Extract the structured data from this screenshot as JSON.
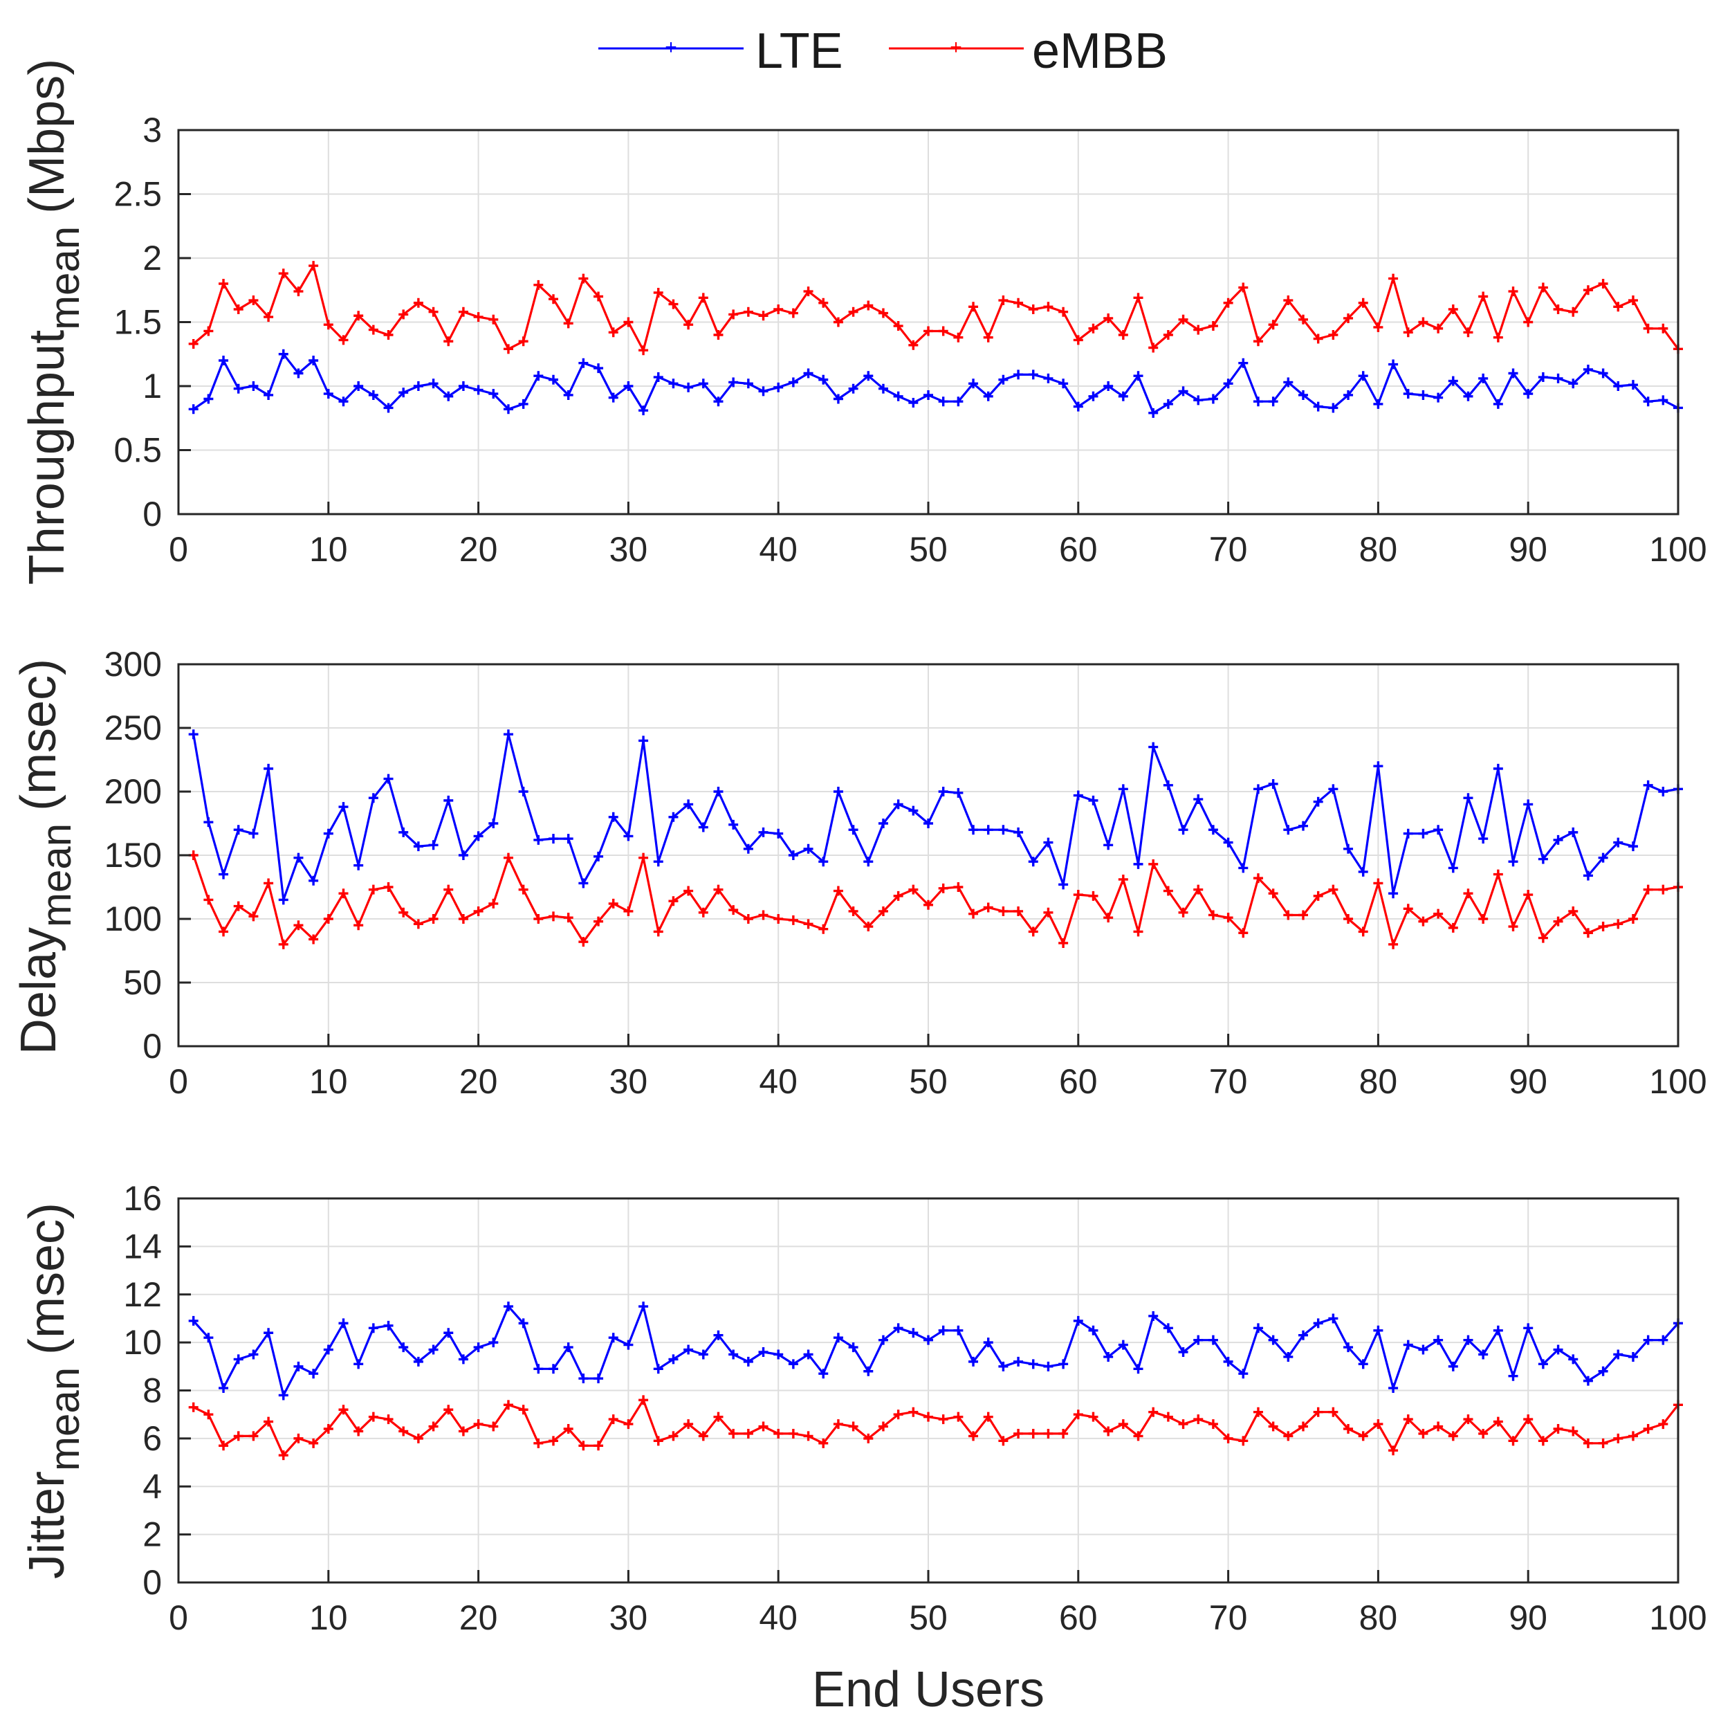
{
  "figure": {
    "legend": [
      {
        "name": "LTE",
        "color": "#0000ff"
      },
      {
        "name": "eMBB",
        "color": "#ff0000"
      }
    ],
    "shared_xlabel": "End Users"
  },
  "chart_data": [
    {
      "type": "line",
      "title": "",
      "xlabel": "",
      "ylabel": {
        "base": "Throughput",
        "sub": "mean",
        "unit": "(Mbps)"
      },
      "xlim": [
        0,
        100
      ],
      "ylim": [
        0,
        3
      ],
      "xticks": [
        0,
        10,
        20,
        30,
        40,
        50,
        60,
        70,
        80,
        90,
        100
      ],
      "xtick_labels": [
        "0",
        "10",
        "20",
        "30",
        "40",
        "50",
        "60",
        "70",
        "80",
        "90",
        "100"
      ],
      "yticks": [
        0,
        0.5,
        1,
        1.5,
        2,
        2.5,
        3
      ],
      "ytick_labels": [
        "0",
        "0.5",
        "1",
        "1.5",
        "2",
        "2.5",
        "3"
      ],
      "grid": true,
      "series": [
        {
          "name": "LTE",
          "color": "#0000ff",
          "values": [
            0.82,
            0.9,
            1.2,
            0.98,
            1.0,
            0.93,
            1.25,
            1.1,
            1.2,
            0.94,
            0.88,
            1.0,
            0.93,
            0.83,
            0.95,
            1.0,
            1.02,
            0.92,
            1.0,
            0.97,
            0.94,
            0.82,
            0.86,
            1.08,
            1.05,
            0.93,
            1.18,
            1.14,
            0.91,
            1.0,
            0.81,
            1.07,
            1.02,
            0.99,
            1.02,
            0.88,
            1.03,
            1.02,
            0.96,
            0.99,
            1.03,
            1.1,
            1.05,
            0.9,
            0.98,
            1.08,
            0.98,
            0.92,
            0.87,
            0.93,
            0.88,
            0.88,
            1.02,
            0.92,
            1.05,
            1.09,
            1.09,
            1.06,
            1.02,
            0.84,
            0.92,
            1.0,
            0.92,
            1.08,
            0.79,
            0.86,
            0.96,
            0.89,
            0.9,
            1.02,
            1.18,
            0.88,
            0.88,
            1.03,
            0.93,
            0.84,
            0.83,
            0.93,
            1.08,
            0.86,
            1.17,
            0.94,
            0.93,
            0.91,
            1.04,
            0.92,
            1.06,
            0.86,
            1.1,
            0.94,
            1.07,
            1.06,
            1.02,
            1.13,
            1.1,
            1.0,
            1.01,
            0.88,
            0.89,
            0.83
          ]
        },
        {
          "name": "eMBB",
          "color": "#ff0000",
          "values": [
            1.33,
            1.43,
            1.8,
            1.6,
            1.67,
            1.54,
            1.88,
            1.74,
            1.94,
            1.48,
            1.36,
            1.55,
            1.44,
            1.4,
            1.56,
            1.65,
            1.58,
            1.35,
            1.58,
            1.54,
            1.52,
            1.29,
            1.35,
            1.79,
            1.68,
            1.49,
            1.84,
            1.7,
            1.42,
            1.5,
            1.28,
            1.73,
            1.64,
            1.48,
            1.69,
            1.4,
            1.56,
            1.58,
            1.55,
            1.6,
            1.57,
            1.74,
            1.65,
            1.5,
            1.58,
            1.63,
            1.57,
            1.47,
            1.32,
            1.43,
            1.43,
            1.38,
            1.62,
            1.38,
            1.67,
            1.65,
            1.6,
            1.62,
            1.58,
            1.36,
            1.45,
            1.53,
            1.4,
            1.69,
            1.3,
            1.4,
            1.52,
            1.44,
            1.47,
            1.65,
            1.77,
            1.35,
            1.48,
            1.67,
            1.52,
            1.37,
            1.4,
            1.53,
            1.65,
            1.46,
            1.84,
            1.42,
            1.5,
            1.45,
            1.6,
            1.42,
            1.7,
            1.38,
            1.74,
            1.5,
            1.77,
            1.6,
            1.58,
            1.75,
            1.8,
            1.62,
            1.67,
            1.45,
            1.45,
            1.29
          ]
        }
      ]
    },
    {
      "type": "line",
      "title": "",
      "xlabel": "",
      "ylabel": {
        "base": "Delay",
        "sub": "mean",
        "unit": "(msec)"
      },
      "xlim": [
        0,
        100
      ],
      "ylim": [
        0,
        300
      ],
      "xticks": [
        0,
        10,
        20,
        30,
        40,
        50,
        60,
        70,
        80,
        90,
        100
      ],
      "xtick_labels": [
        "0",
        "10",
        "20",
        "30",
        "40",
        "50",
        "60",
        "70",
        "80",
        "90",
        "100"
      ],
      "yticks": [
        0,
        50,
        100,
        150,
        200,
        250,
        300
      ],
      "ytick_labels": [
        "0",
        "50",
        "100",
        "150",
        "200",
        "250",
        "300"
      ],
      "grid": true,
      "series": [
        {
          "name": "LTE",
          "color": "#0000ff",
          "values": [
            245,
            176,
            135,
            170,
            167,
            218,
            115,
            148,
            130,
            167,
            188,
            142,
            195,
            210,
            168,
            157,
            158,
            193,
            150,
            165,
            175,
            245,
            200,
            162,
            163,
            163,
            128,
            149,
            180,
            165,
            240,
            145,
            180,
            190,
            172,
            200,
            174,
            155,
            168,
            167,
            150,
            155,
            145,
            200,
            170,
            145,
            175,
            190,
            185,
            175,
            200,
            199,
            170,
            170,
            170,
            168,
            145,
            160,
            127,
            197,
            193,
            158,
            202,
            143,
            235,
            205,
            170,
            194,
            170,
            160,
            140,
            202,
            206,
            170,
            173,
            192,
            202,
            155,
            137,
            220,
            120,
            167,
            167,
            170,
            140,
            195,
            163,
            218,
            145,
            190,
            147,
            162,
            168,
            134,
            148,
            160,
            157,
            205,
            200,
            202
          ]
        },
        {
          "name": "eMBB",
          "color": "#ff0000",
          "values": [
            150,
            115,
            90,
            110,
            102,
            128,
            80,
            95,
            84,
            100,
            120,
            95,
            123,
            125,
            105,
            96,
            100,
            123,
            100,
            106,
            112,
            148,
            123,
            100,
            102,
            101,
            82,
            98,
            112,
            106,
            148,
            90,
            114,
            122,
            105,
            123,
            107,
            100,
            103,
            100,
            99,
            96,
            92,
            122,
            106,
            94,
            106,
            118,
            123,
            111,
            124,
            125,
            104,
            109,
            106,
            106,
            90,
            105,
            81,
            119,
            118,
            101,
            131,
            90,
            143,
            122,
            105,
            123,
            103,
            101,
            89,
            132,
            120,
            103,
            103,
            118,
            123,
            100,
            90,
            128,
            80,
            108,
            98,
            104,
            93,
            120,
            100,
            135,
            94,
            119,
            85,
            98,
            106,
            89,
            94,
            96,
            100,
            123,
            123,
            125
          ]
        }
      ]
    },
    {
      "type": "line",
      "title": "",
      "xlabel": "End Users",
      "ylabel": {
        "base": "Jitter",
        "sub": "mean",
        "unit": "(msec)"
      },
      "xlim": [
        0,
        100
      ],
      "ylim": [
        0,
        16
      ],
      "xticks": [
        0,
        10,
        20,
        30,
        40,
        50,
        60,
        70,
        80,
        90,
        100
      ],
      "xtick_labels": [
        "0",
        "10",
        "20",
        "30",
        "40",
        "50",
        "60",
        "70",
        "80",
        "90",
        "100"
      ],
      "yticks": [
        0,
        2,
        4,
        6,
        8,
        10,
        12,
        14,
        16
      ],
      "ytick_labels": [
        "0",
        "2",
        "4",
        "6",
        "8",
        "10",
        "12",
        "14",
        "16"
      ],
      "grid": true,
      "series": [
        {
          "name": "LTE",
          "color": "#0000ff",
          "values": [
            10.9,
            10.2,
            8.1,
            9.3,
            9.5,
            10.4,
            7.8,
            9.0,
            8.7,
            9.7,
            10.8,
            9.1,
            10.6,
            10.7,
            9.8,
            9.2,
            9.7,
            10.4,
            9.3,
            9.8,
            10.0,
            11.5,
            10.8,
            8.9,
            8.9,
            9.8,
            8.5,
            8.5,
            10.2,
            9.9,
            11.5,
            8.9,
            9.3,
            9.7,
            9.5,
            10.3,
            9.5,
            9.2,
            9.6,
            9.5,
            9.1,
            9.5,
            8.7,
            10.2,
            9.8,
            8.8,
            10.1,
            10.6,
            10.4,
            10.1,
            10.5,
            10.5,
            9.2,
            10.0,
            9.0,
            9.2,
            9.1,
            9.0,
            9.1,
            10.9,
            10.5,
            9.4,
            9.9,
            8.9,
            11.1,
            10.6,
            9.6,
            10.1,
            10.1,
            9.2,
            8.7,
            10.6,
            10.1,
            9.4,
            10.3,
            10.8,
            11.0,
            9.8,
            9.1,
            10.5,
            8.1,
            9.9,
            9.7,
            10.1,
            9.0,
            10.1,
            9.5,
            10.5,
            8.6,
            10.6,
            9.1,
            9.7,
            9.3,
            8.4,
            8.8,
            9.5,
            9.4,
            10.1,
            10.1,
            10.8
          ]
        },
        {
          "name": "eMBB",
          "color": "#ff0000",
          "values": [
            7.3,
            7.0,
            5.7,
            6.1,
            6.1,
            6.7,
            5.3,
            6.0,
            5.8,
            6.4,
            7.2,
            6.3,
            6.9,
            6.8,
            6.3,
            6.0,
            6.5,
            7.2,
            6.3,
            6.6,
            6.5,
            7.4,
            7.2,
            5.8,
            5.9,
            6.4,
            5.7,
            5.7,
            6.8,
            6.6,
            7.6,
            5.9,
            6.1,
            6.6,
            6.1,
            6.9,
            6.2,
            6.2,
            6.5,
            6.2,
            6.2,
            6.1,
            5.8,
            6.6,
            6.5,
            6.0,
            6.5,
            7.0,
            7.1,
            6.9,
            6.8,
            6.9,
            6.1,
            6.9,
            5.9,
            6.2,
            6.2,
            6.2,
            6.2,
            7.0,
            6.9,
            6.3,
            6.6,
            6.1,
            7.1,
            6.9,
            6.6,
            6.8,
            6.6,
            6.0,
            5.9,
            7.1,
            6.5,
            6.1,
            6.5,
            7.1,
            7.1,
            6.4,
            6.1,
            6.6,
            5.5,
            6.8,
            6.2,
            6.5,
            6.1,
            6.8,
            6.2,
            6.7,
            5.9,
            6.8,
            5.9,
            6.4,
            6.3,
            5.8,
            5.8,
            6.0,
            6.1,
            6.4,
            6.6,
            7.4
          ]
        }
      ]
    }
  ]
}
